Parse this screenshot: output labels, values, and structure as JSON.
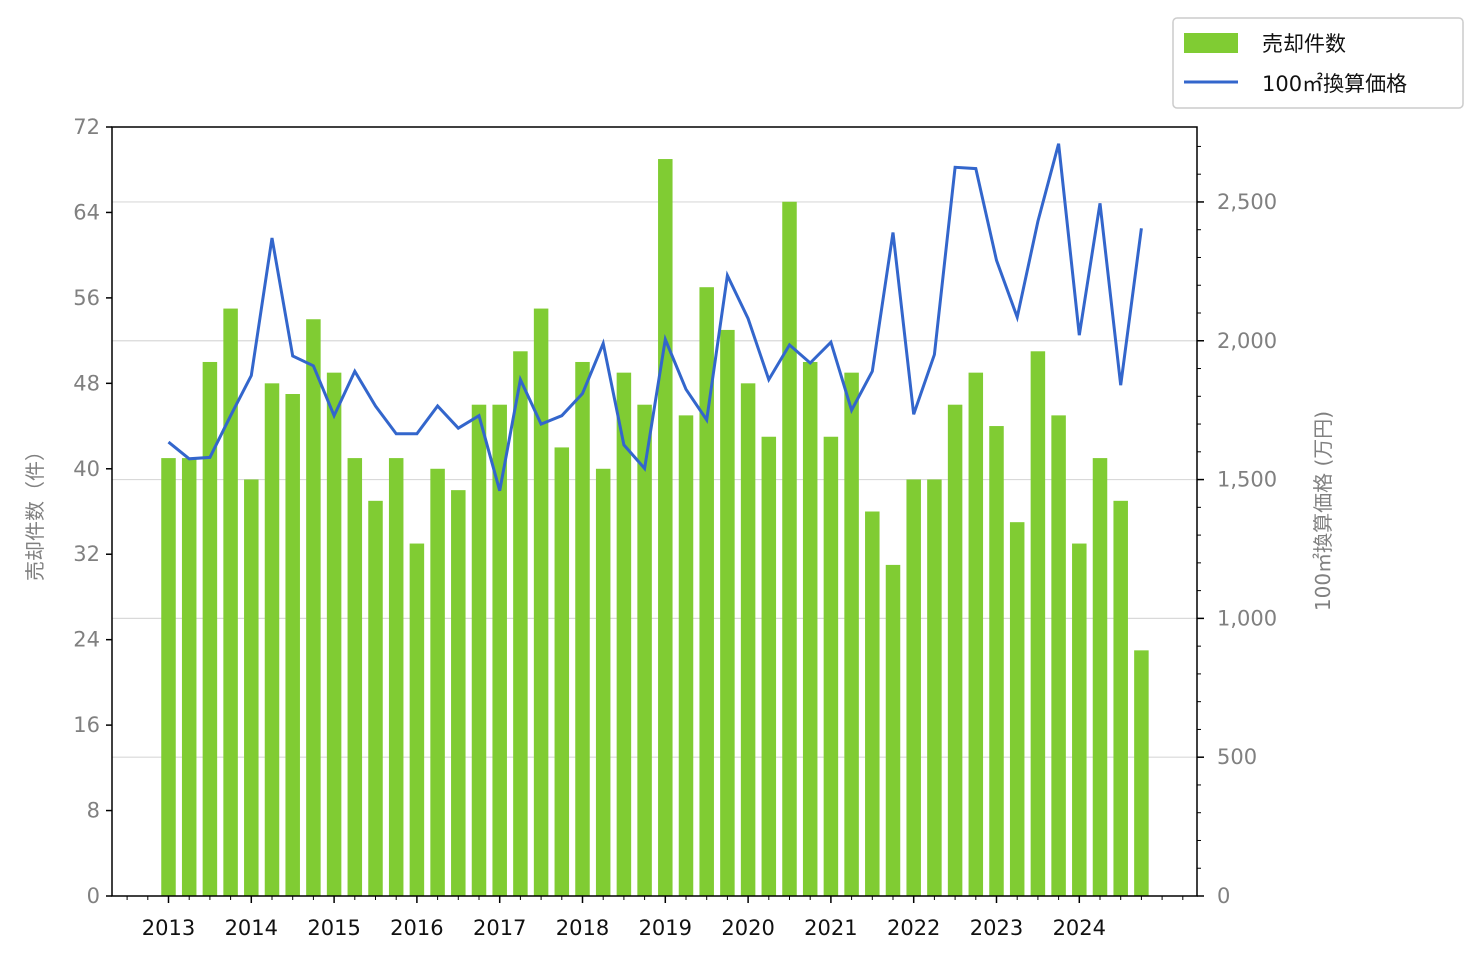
{
  "chart_data": {
    "type": "bar+line",
    "x_tick_labels": [
      "2013",
      "2014",
      "2015",
      "2016",
      "2017",
      "2018",
      "2019",
      "2020",
      "2021",
      "2022",
      "2023",
      "2024"
    ],
    "x_start_year": 2013,
    "periods_per_year": 4,
    "bar_series": {
      "name": "売却件数",
      "color": "#80cc33",
      "values": [
        41,
        41,
        50,
        55,
        39,
        48,
        47,
        54,
        49,
        41,
        37,
        41,
        33,
        40,
        38,
        46,
        46,
        51,
        55,
        42,
        50,
        40,
        49,
        46,
        69,
        45,
        57,
        53,
        48,
        43,
        65,
        50,
        43,
        49,
        36,
        31,
        39,
        39,
        46,
        49,
        44,
        35,
        51,
        45,
        33,
        41,
        37,
        23
      ]
    },
    "line_series": {
      "name": "100㎡換算価格",
      "color": "#3366cc",
      "values": [
        1635,
        1575,
        1580,
        1730,
        1875,
        2370,
        1945,
        1910,
        1730,
        1890,
        1765,
        1665,
        1665,
        1765,
        1685,
        1730,
        1460,
        1860,
        1700,
        1730,
        1810,
        1990,
        1625,
        1540,
        2005,
        1825,
        1715,
        2235,
        2080,
        1860,
        1985,
        1920,
        1995,
        1750,
        1890,
        2390,
        1735,
        1950,
        2625,
        2620,
        2290,
        2085,
        2430,
        2710,
        2020,
        2495,
        1840,
        2405
      ]
    },
    "left_axis": {
      "label": "売却件数（件）",
      "ylim": [
        0,
        72
      ],
      "ticks": [
        "0",
        "8",
        "16",
        "24",
        "32",
        "40",
        "48",
        "56",
        "64",
        "72"
      ]
    },
    "right_axis": {
      "label": "100㎡換算価格 (万円)",
      "ylim": [
        0,
        2770
      ],
      "ticks": [
        "0",
        "500",
        "1,000",
        "1,500",
        "2,000",
        "2,500"
      ]
    },
    "grid": "horizontal, right axis",
    "legend_placement": "top-right outside"
  }
}
